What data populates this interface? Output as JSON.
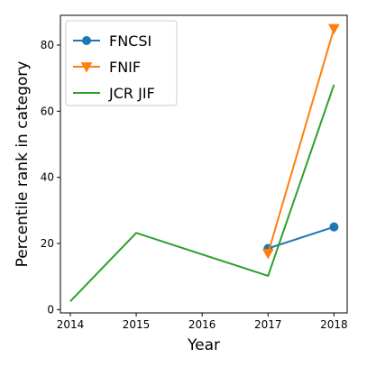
{
  "chart_data": {
    "type": "line",
    "xlabel": "Year",
    "ylabel": "Percentile rank in category",
    "xlim": [
      2013.85,
      2018.2
    ],
    "ylim": [
      -1,
      89
    ],
    "x_ticks": [
      2014,
      2015,
      2016,
      2017,
      2018
    ],
    "y_ticks": [
      0,
      20,
      40,
      60,
      80
    ],
    "grid": false,
    "legend_position": "top-left",
    "series": [
      {
        "name": "FNCSI",
        "color": "#1f77b4",
        "marker": "circle",
        "x": [
          2017,
          2018
        ],
        "y": [
          18.5,
          25.0
        ]
      },
      {
        "name": "FNIF",
        "color": "#ff7f0e",
        "marker": "triangle-down",
        "x": [
          2017,
          2018
        ],
        "y": [
          17.0,
          85.0
        ]
      },
      {
        "name": "JCR JIF",
        "color": "#2ca02c",
        "marker": "none",
        "x": [
          2014,
          2015,
          2017,
          2018
        ],
        "y": [
          2.5,
          23.2,
          10.2,
          68.0
        ]
      }
    ]
  }
}
